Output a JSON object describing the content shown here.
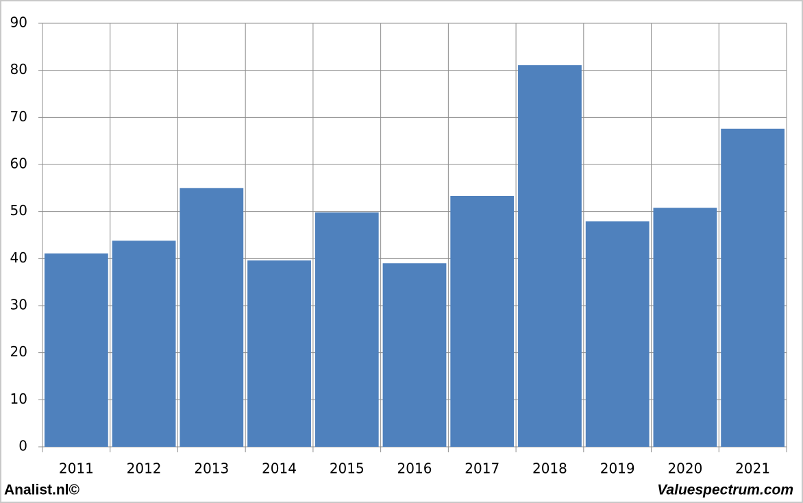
{
  "chart_data": {
    "type": "bar",
    "categories": [
      "2011",
      "2012",
      "2013",
      "2014",
      "2015",
      "2016",
      "2017",
      "2018",
      "2019",
      "2020",
      "2021"
    ],
    "values": [
      41.1,
      43.8,
      55.0,
      39.6,
      49.8,
      39.0,
      53.3,
      81.1,
      47.9,
      50.8,
      67.6
    ],
    "color": "#4f81bd",
    "ylim": [
      0,
      90
    ],
    "yticks": [
      0,
      10,
      20,
      30,
      40,
      50,
      60,
      70,
      80,
      90
    ],
    "grid": true,
    "annotations": [
      "Analist.nl©",
      "Valuespectrum.com"
    ]
  }
}
